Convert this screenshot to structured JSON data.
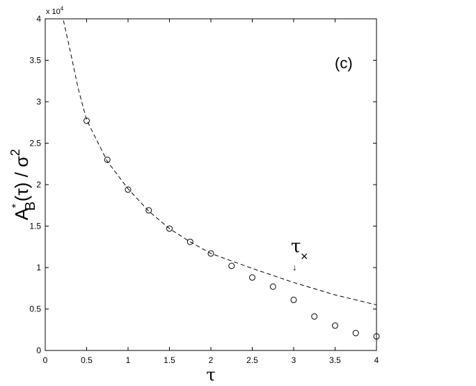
{
  "chart_data": {
    "type": "scatter",
    "multiplier": [
      "x 10",
      "4"
    ],
    "xlabel": "τ",
    "ylabel": [
      "A",
      "*",
      "B",
      "(τ) / σ",
      "2"
    ],
    "annotations": {
      "panel": "(c)",
      "tau_symbol": "τ",
      "tau_sub": "×",
      "arrow": "↓"
    },
    "xlim": [
      0,
      4
    ],
    "ylim": [
      0,
      4
    ],
    "xticks": [
      0,
      0.5,
      1,
      1.5,
      2,
      2.5,
      3,
      3.5,
      4
    ],
    "yticks": [
      0,
      0.5,
      1,
      1.5,
      2,
      2.5,
      3,
      3.5,
      4
    ],
    "points": {
      "color": "#000000",
      "x": [
        0.5,
        0.75,
        1,
        1.25,
        1.5,
        1.75,
        2,
        2.25,
        2.5,
        2.75,
        3,
        3.25,
        3.5,
        3.75,
        4
      ],
      "values": [
        2.77,
        2.3,
        1.94,
        1.69,
        1.47,
        1.31,
        1.17,
        1.02,
        0.88,
        0.77,
        0.61,
        0.41,
        0.3,
        0.21,
        0.17
      ]
    },
    "curve": {
      "color": "#000000",
      "x": [
        0.22,
        0.3,
        0.4,
        0.5,
        0.75,
        1,
        1.25,
        1.5,
        1.75,
        2,
        2.5,
        3,
        3.5,
        4
      ],
      "values": [
        3.98,
        3.62,
        3.15,
        2.78,
        2.28,
        1.95,
        1.68,
        1.47,
        1.31,
        1.17,
        0.99,
        0.82,
        0.67,
        0.55
      ]
    }
  }
}
